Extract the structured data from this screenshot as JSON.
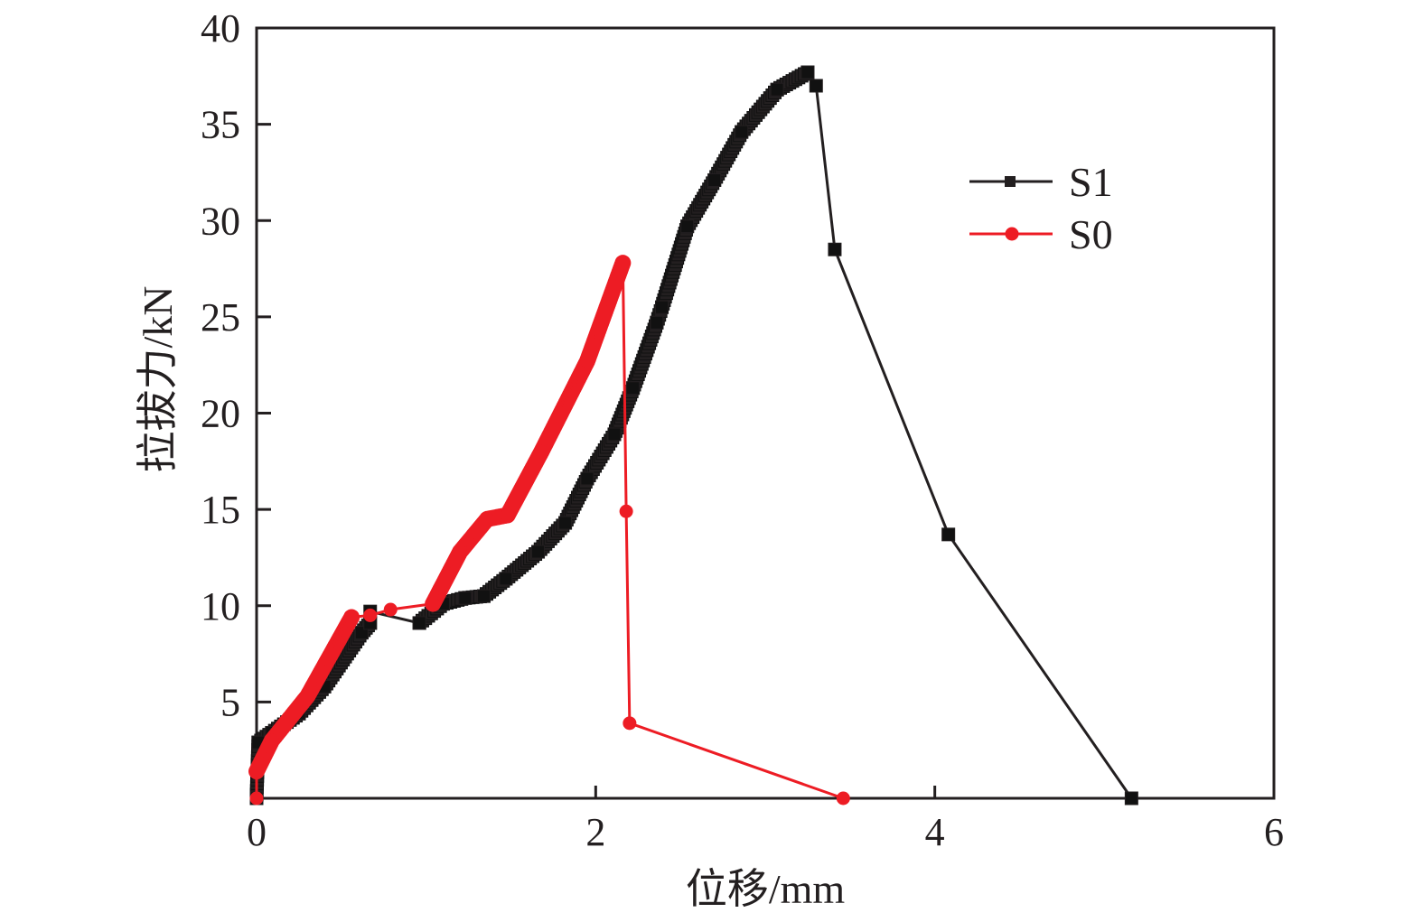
{
  "chart_data": {
    "type": "line",
    "title": "",
    "xlabel": "位移/mm",
    "ylabel": "拉拔力/kN",
    "xlim": [
      0,
      6
    ],
    "ylim": [
      0,
      40
    ],
    "x_ticks": [
      0,
      2,
      4,
      6
    ],
    "x_tick_labels": [
      "0",
      "2",
      "4",
      "6"
    ],
    "y_ticks": [
      5,
      10,
      15,
      20,
      25,
      30,
      35,
      40
    ],
    "y_tick_labels": [
      "5",
      "10",
      "15",
      "20",
      "25",
      "30",
      "35",
      "40"
    ],
    "grid": false,
    "legend": {
      "position": "top-right",
      "entries": [
        "S1",
        "S0"
      ]
    },
    "series": [
      {
        "name": "S1",
        "color": "#231f20",
        "marker": "square",
        "x": [
          0,
          0.01,
          0.09,
          0.25,
          0.4,
          0.62,
          0.67,
          0.67,
          0.96,
          1.1,
          1.23,
          1.34,
          1.47,
          1.66,
          1.82,
          1.95,
          2.11,
          2.22,
          2.36,
          2.39,
          2.54,
          2.7,
          2.86,
          3.07,
          3.25,
          3.3,
          3.41,
          4.08,
          5.16
        ],
        "y": [
          0,
          2.9,
          3.4,
          4.4,
          5.8,
          8.6,
          9.1,
          9.7,
          9.1,
          10.1,
          10.4,
          10.5,
          11.4,
          12.8,
          14.3,
          16.6,
          18.9,
          21.3,
          24.7,
          25.5,
          29.7,
          32.1,
          34.6,
          36.8,
          37.7,
          37.0,
          28.5,
          13.7,
          0
        ],
        "dense_until_index": 25
      },
      {
        "name": "S0",
        "color": "#ed1c24",
        "marker": "circle",
        "x": [
          0,
          0,
          0.09,
          0.3,
          0.56,
          0.67,
          0.79,
          1.04,
          1.2,
          1.36,
          1.48,
          1.68,
          1.95,
          2.16,
          2.18,
          2.2,
          3.46
        ],
        "y": [
          0,
          1.4,
          3.0,
          5.3,
          9.4,
          9.5,
          9.8,
          10.1,
          12.8,
          14.5,
          14.7,
          18.0,
          22.7,
          27.8,
          14.9,
          3.9,
          0
        ],
        "dense_ranges": [
          [
            1,
            4
          ],
          [
            7,
            13
          ]
        ]
      }
    ]
  }
}
